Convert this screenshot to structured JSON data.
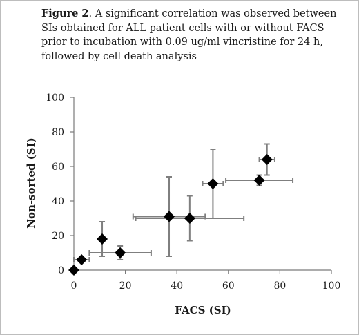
{
  "caption": {
    "label": "Figure 2",
    "text": ". A significant correlation was observed between SIs obtained for ALL patient cells with or without FACS prior to incubation with 0.09 ug/ml vincristine for 24 h, followed by cell death analysis"
  },
  "chart_data": {
    "type": "scatter",
    "title": "",
    "xlabel": "FACS (SI)",
    "ylabel": "Non-sorted (SI)",
    "xlim": [
      0,
      100
    ],
    "ylim": [
      0,
      100
    ],
    "x_ticks": [
      0,
      20,
      40,
      60,
      80,
      100
    ],
    "y_ticks": [
      0,
      20,
      40,
      60,
      80,
      100
    ],
    "grid": false,
    "legend": "none",
    "marker": "diamond",
    "color": "#000000",
    "errorbar_color": "#7f7f7f",
    "points": [
      {
        "x": 0,
        "y": 0,
        "x_err": 0,
        "y_err": 0
      },
      {
        "x": 3,
        "y": 6,
        "x_err": 3,
        "y_err": 0
      },
      {
        "x": 11,
        "y": 18,
        "x_err": 0,
        "y_err": 10
      },
      {
        "x": 18,
        "y": 10,
        "x_err": 12,
        "y_err": 4
      },
      {
        "x": 37,
        "y": 31,
        "x_err": 14,
        "y_err": 23
      },
      {
        "x": 45,
        "y": 30,
        "x_err": 21,
        "y_err": 13
      },
      {
        "x": 54,
        "y": 50,
        "x_err": 4,
        "y_err": 20
      },
      {
        "x": 72,
        "y": 52,
        "x_err": 13,
        "y_err": 3
      },
      {
        "x": 75,
        "y": 64,
        "x_err": 3,
        "y_err": 9
      }
    ]
  }
}
